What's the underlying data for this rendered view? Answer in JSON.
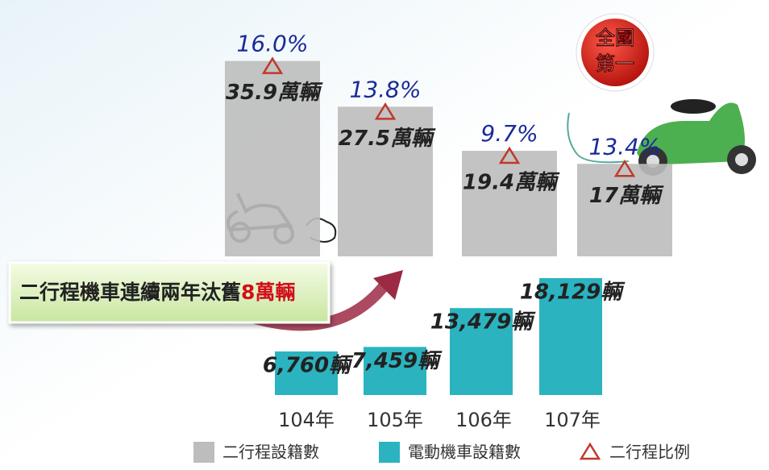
{
  "chart_data": {
    "type": "bar",
    "categories": [
      "104年",
      "105年",
      "106年",
      "107年"
    ],
    "series": [
      {
        "name": "二行程設籍數",
        "color": "#bdbdbd",
        "values": [
          35.9,
          27.5,
          19.4,
          17
        ],
        "value_labels": [
          "35.9萬輛",
          "27.5萬輛",
          "19.4萬輛",
          "17萬輛"
        ]
      },
      {
        "name": "電動機車設籍數",
        "color": "#2bb3c0",
        "axis": "y2",
        "values": [
          6760,
          7459,
          13479,
          18129
        ],
        "value_labels": [
          "6,760輛",
          "7,459輛",
          "13,479輛",
          "18,129輛"
        ]
      },
      {
        "name": "二行程比例",
        "color": "#c0392b",
        "type": "marker",
        "values": [
          16.0,
          13.8,
          9.7,
          13.4
        ],
        "value_labels": [
          "16.0%",
          "13.8%",
          "9.7%",
          "13.4%"
        ]
      }
    ],
    "ylim": [
      0,
      40
    ],
    "y2lim": [
      0,
      20000
    ],
    "annotation": {
      "text": "二行程機車連續兩年汰舊",
      "highlight": "8萬輛"
    },
    "badge": [
      "全國",
      "第一"
    ]
  }
}
